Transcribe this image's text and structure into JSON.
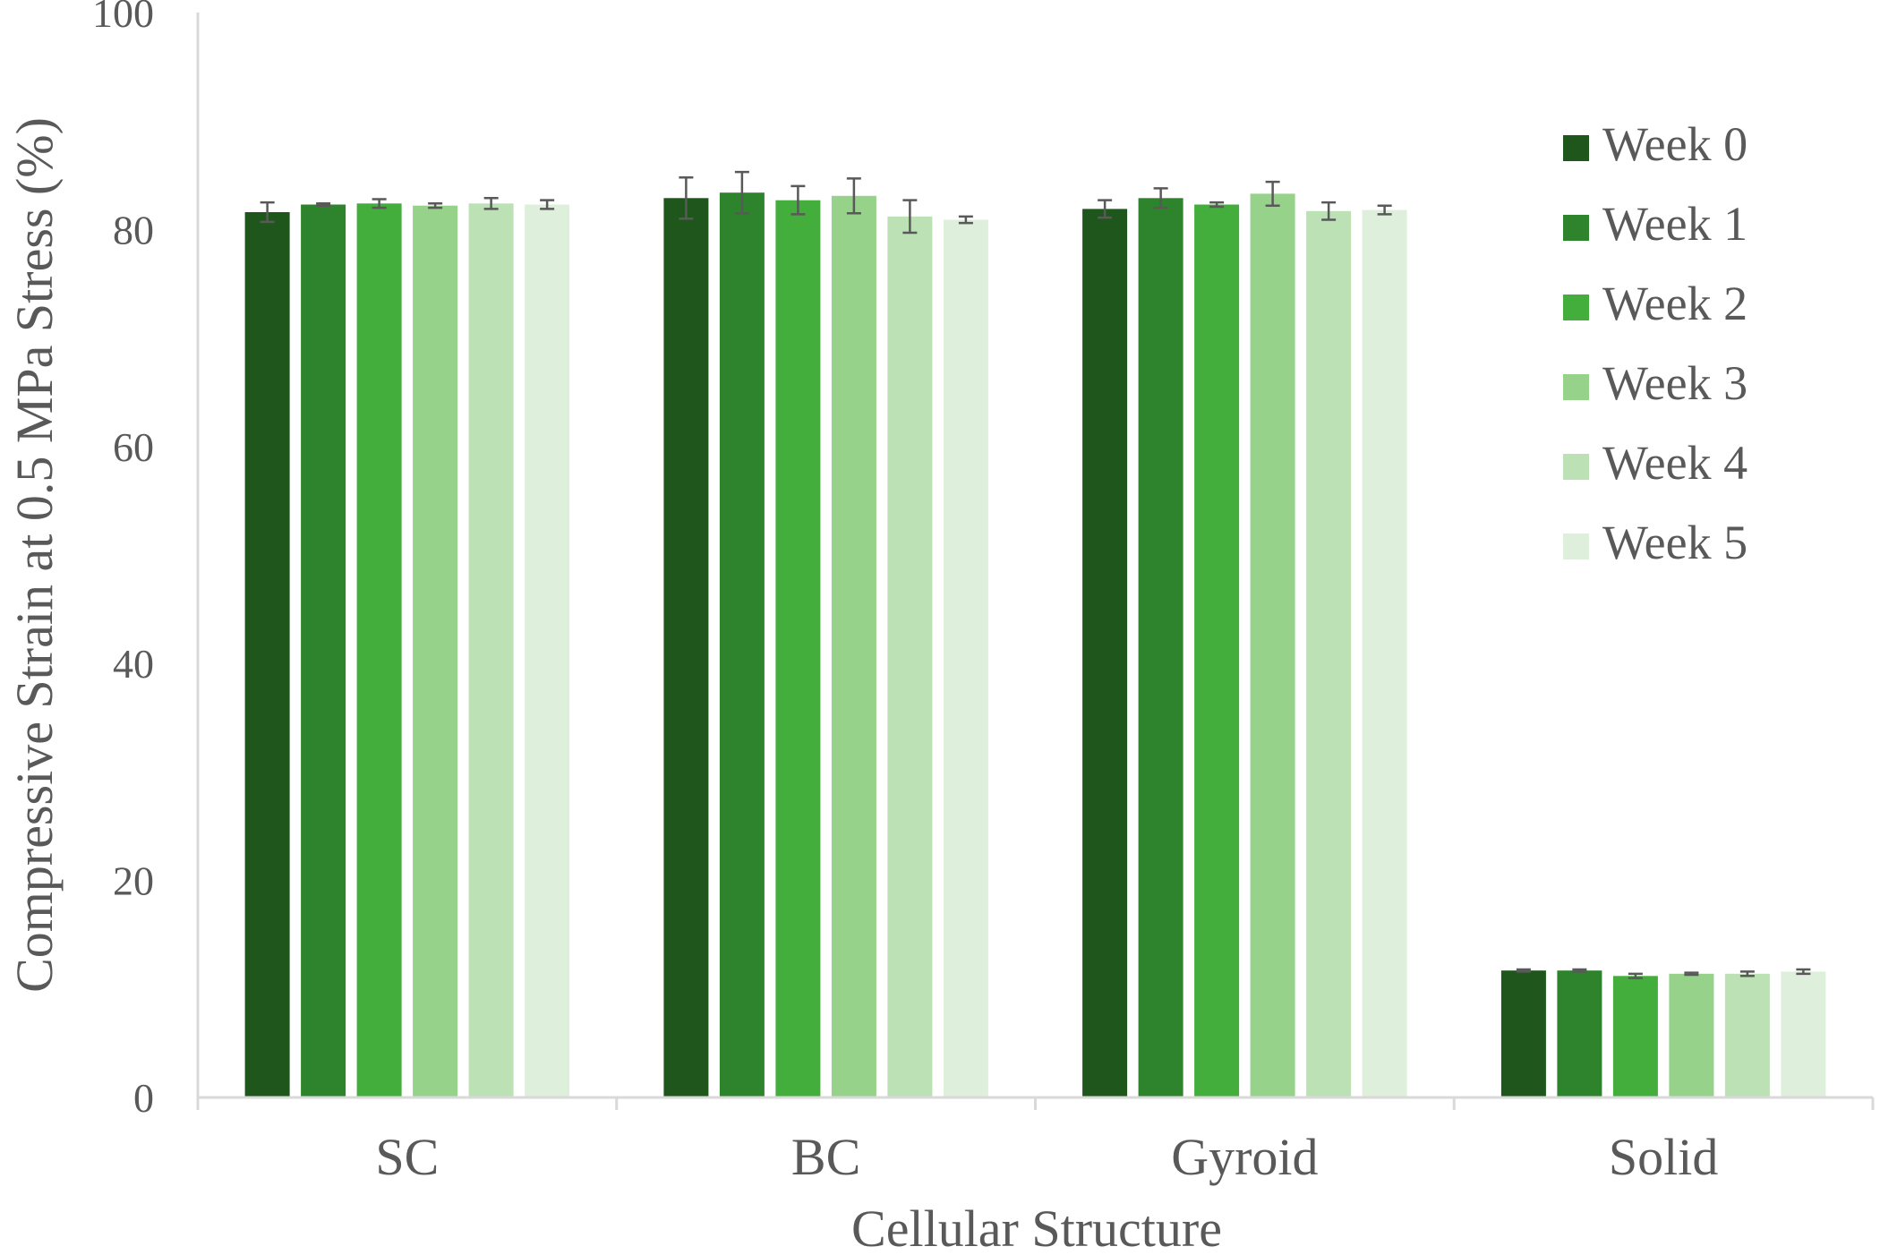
{
  "chart_data": {
    "type": "bar",
    "title": "",
    "xlabel": "Cellular Structure",
    "ylabel": "Compressive Strain at 0.5 MPa Stress (%)",
    "ylim": [
      0,
      100
    ],
    "yticks": [
      0,
      20,
      40,
      60,
      80,
      100
    ],
    "grid": false,
    "legend_position": "right",
    "categories": [
      "SC",
      "BC",
      "Gyroid",
      "Solid"
    ],
    "series": [
      {
        "name": "Week 0",
        "color": "#1e561c",
        "values": [
          81.6,
          82.9,
          81.9,
          11.7
        ],
        "errors": [
          0.9,
          1.9,
          0.8,
          0.1
        ]
      },
      {
        "name": "Week 1",
        "color": "#2e842c",
        "values": [
          82.3,
          83.4,
          82.9,
          11.7
        ],
        "errors": [
          0.1,
          1.9,
          0.9,
          0.1
        ]
      },
      {
        "name": "Week 2",
        "color": "#44ae3c",
        "values": [
          82.4,
          82.7,
          82.3,
          11.2
        ],
        "errors": [
          0.4,
          1.3,
          0.2,
          0.2
        ]
      },
      {
        "name": "Week 3",
        "color": "#97d28b",
        "values": [
          82.2,
          83.1,
          83.3,
          11.4
        ],
        "errors": [
          0.2,
          1.6,
          1.1,
          0.1
        ]
      },
      {
        "name": "Week 4",
        "color": "#bbe1b5",
        "values": [
          82.4,
          81.2,
          81.7,
          11.4
        ],
        "errors": [
          0.5,
          1.5,
          0.8,
          0.2
        ]
      },
      {
        "name": "Week 5",
        "color": "#def0db",
        "values": [
          82.3,
          80.9,
          81.8,
          11.6
        ],
        "errors": [
          0.4,
          0.3,
          0.4,
          0.2
        ]
      }
    ],
    "colors": {
      "axis": "#d9d9d9",
      "text": "#595959",
      "error_bar": "#595959"
    }
  }
}
